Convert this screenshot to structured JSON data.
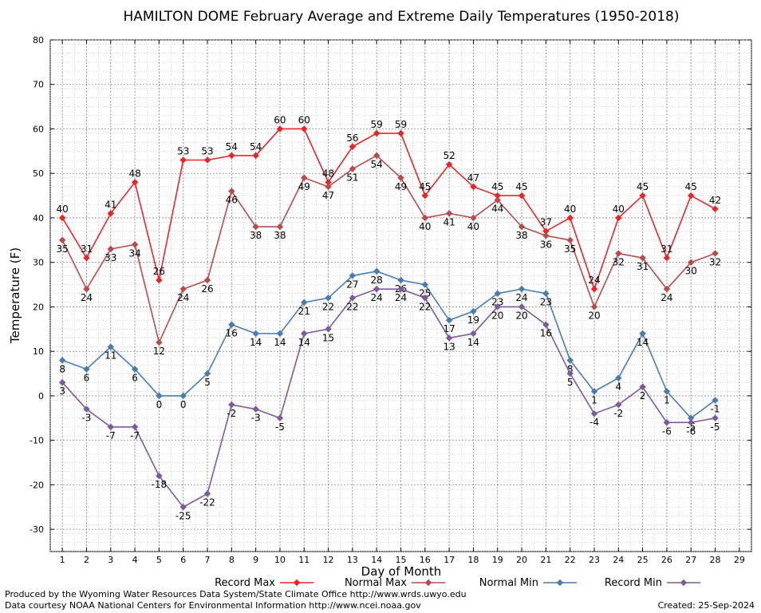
{
  "chart_data": {
    "type": "line",
    "title": "HAMILTON DOME February Average and Extreme Daily Temperatures (1950-2018)",
    "xlabel": "Day of Month",
    "ylabel": "Temperature (F)",
    "xlim": [
      0.5,
      29.5
    ],
    "ylim": [
      -35,
      80
    ],
    "x_ticks": [
      1,
      2,
      3,
      4,
      5,
      6,
      7,
      8,
      9,
      10,
      11,
      12,
      13,
      14,
      15,
      16,
      17,
      18,
      19,
      20,
      21,
      22,
      23,
      24,
      25,
      26,
      27,
      28,
      29
    ],
    "y_ticks": [
      -30,
      -20,
      -10,
      0,
      10,
      20,
      30,
      40,
      50,
      60,
      70,
      80
    ],
    "grid": true,
    "legend_position": "bottom",
    "x": [
      1,
      2,
      3,
      4,
      5,
      6,
      7,
      8,
      9,
      10,
      11,
      12,
      13,
      14,
      15,
      16,
      17,
      18,
      19,
      20,
      21,
      22,
      23,
      24,
      25,
      26,
      27,
      28
    ],
    "series": [
      {
        "name": "Record Max",
        "color": "#e8262a",
        "values": [
          40,
          31,
          41,
          48,
          26,
          53,
          53,
          54,
          54,
          60,
          60,
          48,
          56,
          59,
          59,
          45,
          52,
          47,
          45,
          45,
          37,
          40,
          24,
          40,
          45,
          31,
          45,
          42
        ]
      },
      {
        "name": "Normal Max",
        "color": "#b84c4c",
        "values": [
          35,
          24,
          33,
          34,
          12,
          24,
          26,
          46,
          38,
          38,
          49,
          47,
          51,
          54,
          49,
          40,
          41,
          40,
          44,
          38,
          36,
          35,
          20,
          32,
          31,
          24,
          30,
          32
        ]
      },
      {
        "name": "Normal Min",
        "color": "#4a7cb0",
        "values": [
          8,
          6,
          11,
          6,
          0,
          0,
          5,
          16,
          14,
          14,
          21,
          22,
          27,
          28,
          26,
          25,
          17,
          19,
          23,
          24,
          23,
          8,
          1,
          4,
          14,
          1,
          -5,
          -1
        ]
      },
      {
        "name": "Record Min",
        "color": "#7d5a9b",
        "values": [
          3,
          -3,
          -7,
          -7,
          -18,
          -25,
          -22,
          -2,
          -3,
          -5,
          14,
          15,
          22,
          24,
          24,
          22,
          13,
          14,
          20,
          20,
          16,
          5,
          -4,
          -2,
          2,
          -6,
          -6,
          -5
        ]
      }
    ]
  },
  "footer": {
    "produced_by": "Produced by the Wyoming Water Resources Data System/State Climate Office http://www.wrds.uwyo.edu",
    "data_courtesy": "Data courtesy NOAA National Centers for Environmental Information http://www.ncei.noaa.gov",
    "created": "Created:  25-Sep-2024"
  }
}
